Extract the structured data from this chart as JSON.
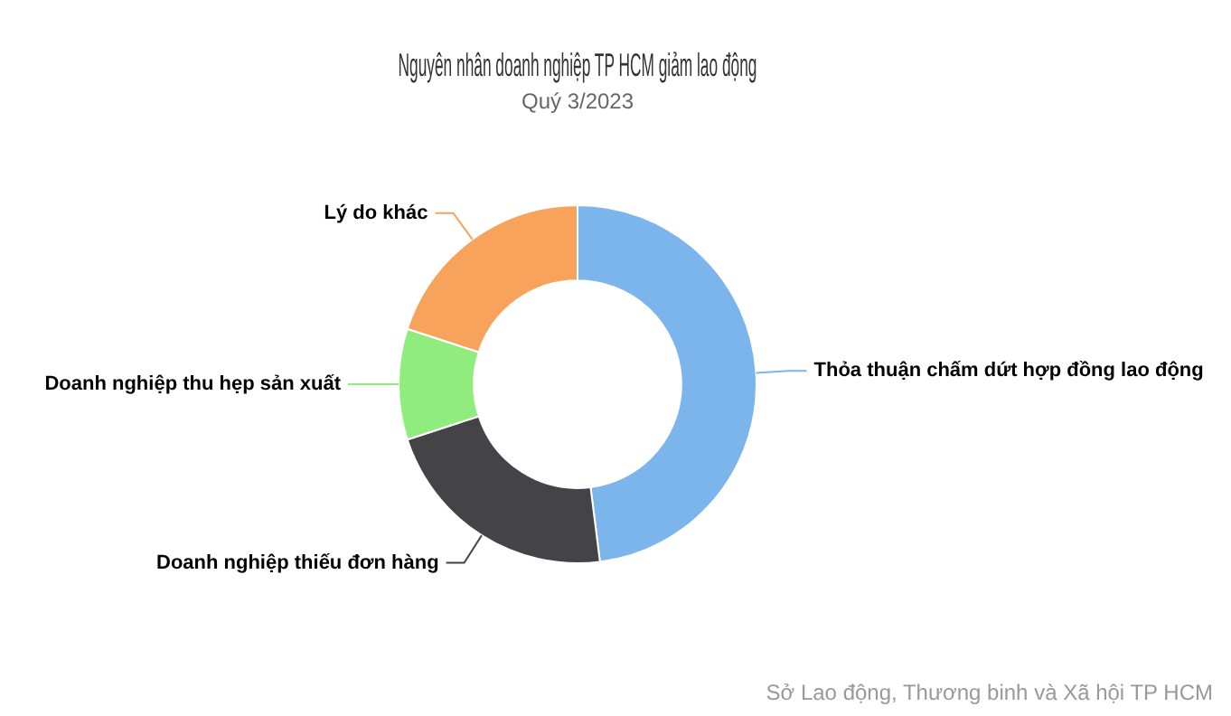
{
  "chart_data": {
    "type": "donut",
    "title": "Nguyên nhân doanh nghiệp TP HCM giảm lao động",
    "subtitle": "Quý 3/2023",
    "categories": [
      "Thỏa thuận chấm dứt hợp đồng lao động",
      "Doanh nghiệp thiếu đơn hàng",
      "Doanh nghiệp thu hẹp sản xuất",
      "Lý do khác"
    ],
    "values": [
      48,
      22,
      10,
      20
    ],
    "colors": [
      "#7cb5ec",
      "#434348",
      "#90ed7d",
      "#f7a35c"
    ],
    "legend": false,
    "annotations": [
      "Sở Lao động, Thương binh và Xã hội TP HCM"
    ]
  }
}
